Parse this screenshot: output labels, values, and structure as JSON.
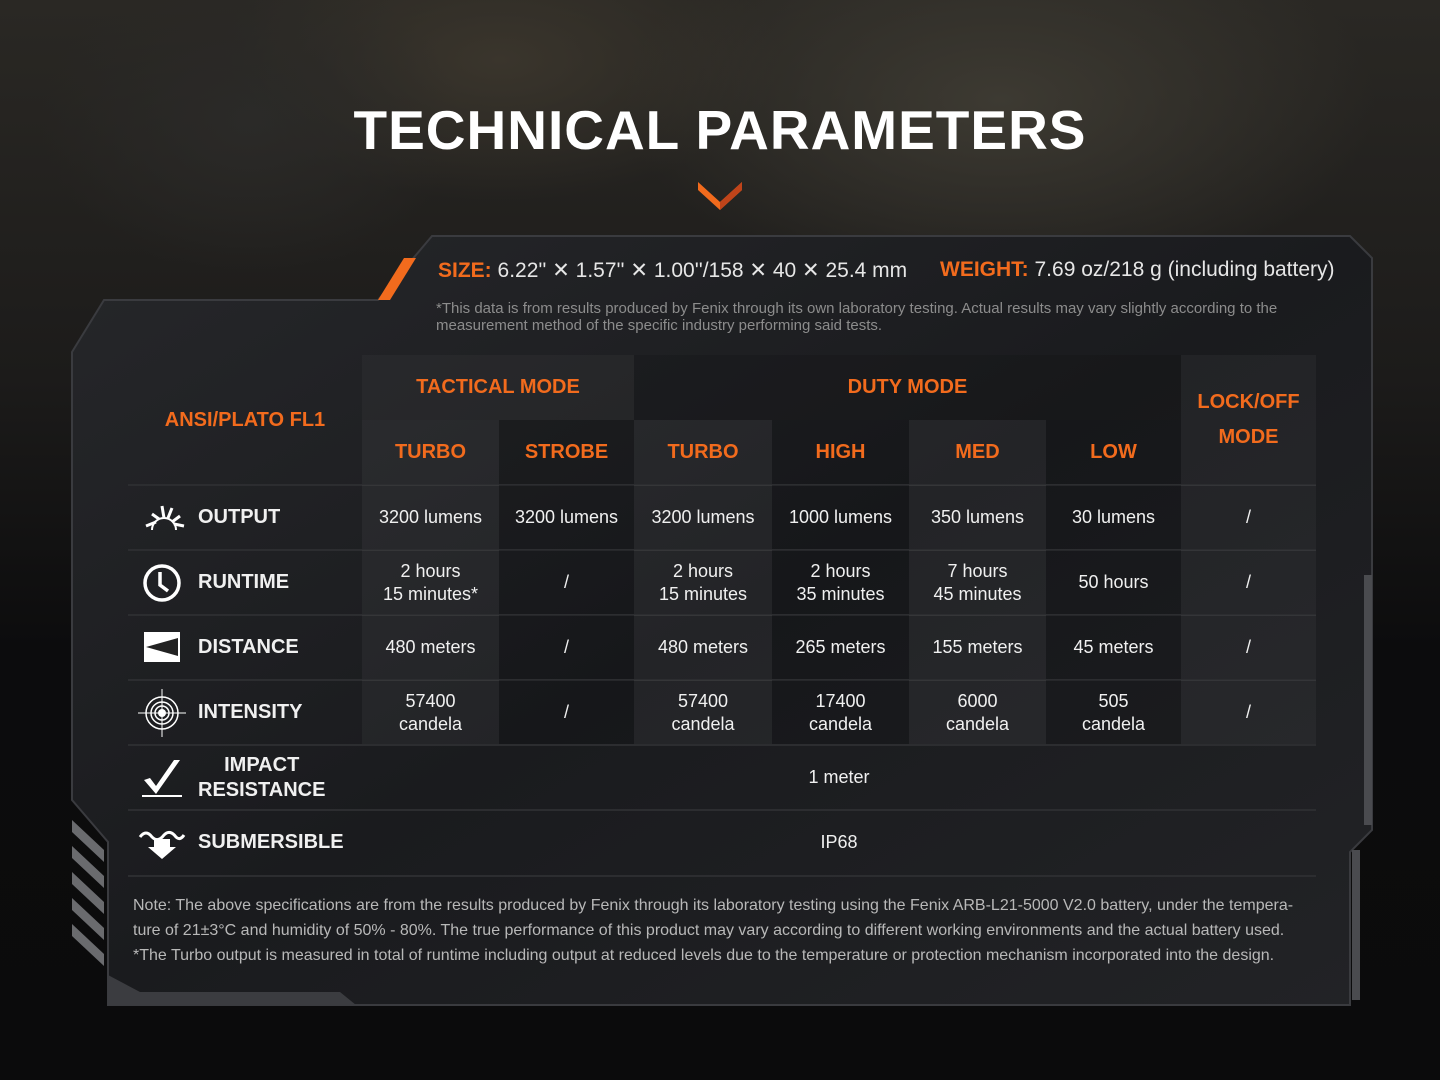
{
  "title": "TECHNICAL PARAMETERS",
  "size": {
    "label": "SIZE:",
    "value": "6.22'' ✕ 1.57'' ✕ 1.00''/158 ✕ 40 ✕ 25.4 mm"
  },
  "weight": {
    "label": "WEIGHT:",
    "value": "7.69 oz/218 g (including battery)"
  },
  "disclaimer": "*This data is from results produced by Fenix through its own laboratory testing. Actual results may vary slightly according to the measurement method of the specific industry performing said tests.",
  "table": {
    "corner": "ANSI/PLATO FL1",
    "groups": [
      {
        "label": "TACTICAL MODE"
      },
      {
        "label": "DUTY MODE"
      },
      {
        "label": "LOCK/OFF\nMODE"
      }
    ],
    "modes": [
      "TURBO",
      "STROBE",
      "TURBO",
      "HIGH",
      "MED",
      "LOW"
    ],
    "rows": [
      {
        "label": "OUTPUT",
        "icon": "sunburst-icon",
        "values": [
          "3200 lumens",
          "3200 lumens",
          "3200 lumens",
          "1000 lumens",
          "350 lumens",
          "30 lumens",
          "/"
        ]
      },
      {
        "label": "RUNTIME",
        "icon": "clock-icon",
        "values": [
          "2 hours\n15 minutes*",
          "/",
          "2 hours\n15 minutes",
          "2 hours\n35 minutes",
          "7 hours\n45 minutes",
          "50 hours",
          "/"
        ]
      },
      {
        "label": "DISTANCE",
        "icon": "beam-distance-icon",
        "values": [
          "480 meters",
          "/",
          "480 meters",
          "265 meters",
          "155 meters",
          "45 meters",
          "/"
        ]
      },
      {
        "label": "INTENSITY",
        "icon": "target-icon",
        "values": [
          "57400\ncandela",
          "/",
          "57400\ncandela",
          "17400\ncandela",
          "6000\ncandela",
          "505\ncandela",
          "/"
        ]
      },
      {
        "label": "IMPACT\nRESISTANCE",
        "icon": "impact-check-icon",
        "span": "1 meter"
      },
      {
        "label": "SUBMERSIBLE",
        "icon": "water-arrow-icon",
        "span": "IP68"
      }
    ]
  },
  "notes": [
    "Note: The above specifications are from the results produced by Fenix through its laboratory testing using the Fenix ARB-L21-5000 V2.0 battery, under the tempera-",
    "ture of 21±3°C and humidity of 50% - 80%. The true performance of this product may vary according to different working environments and the actual battery used.",
    "*The Turbo output is measured in total of runtime including output at reduced levels due to the temperature or protection mechanism incorporated into the design."
  ],
  "colors": {
    "accent": "#f26b1d",
    "background": "#0d0d0e",
    "panel": "#1d1e21"
  }
}
